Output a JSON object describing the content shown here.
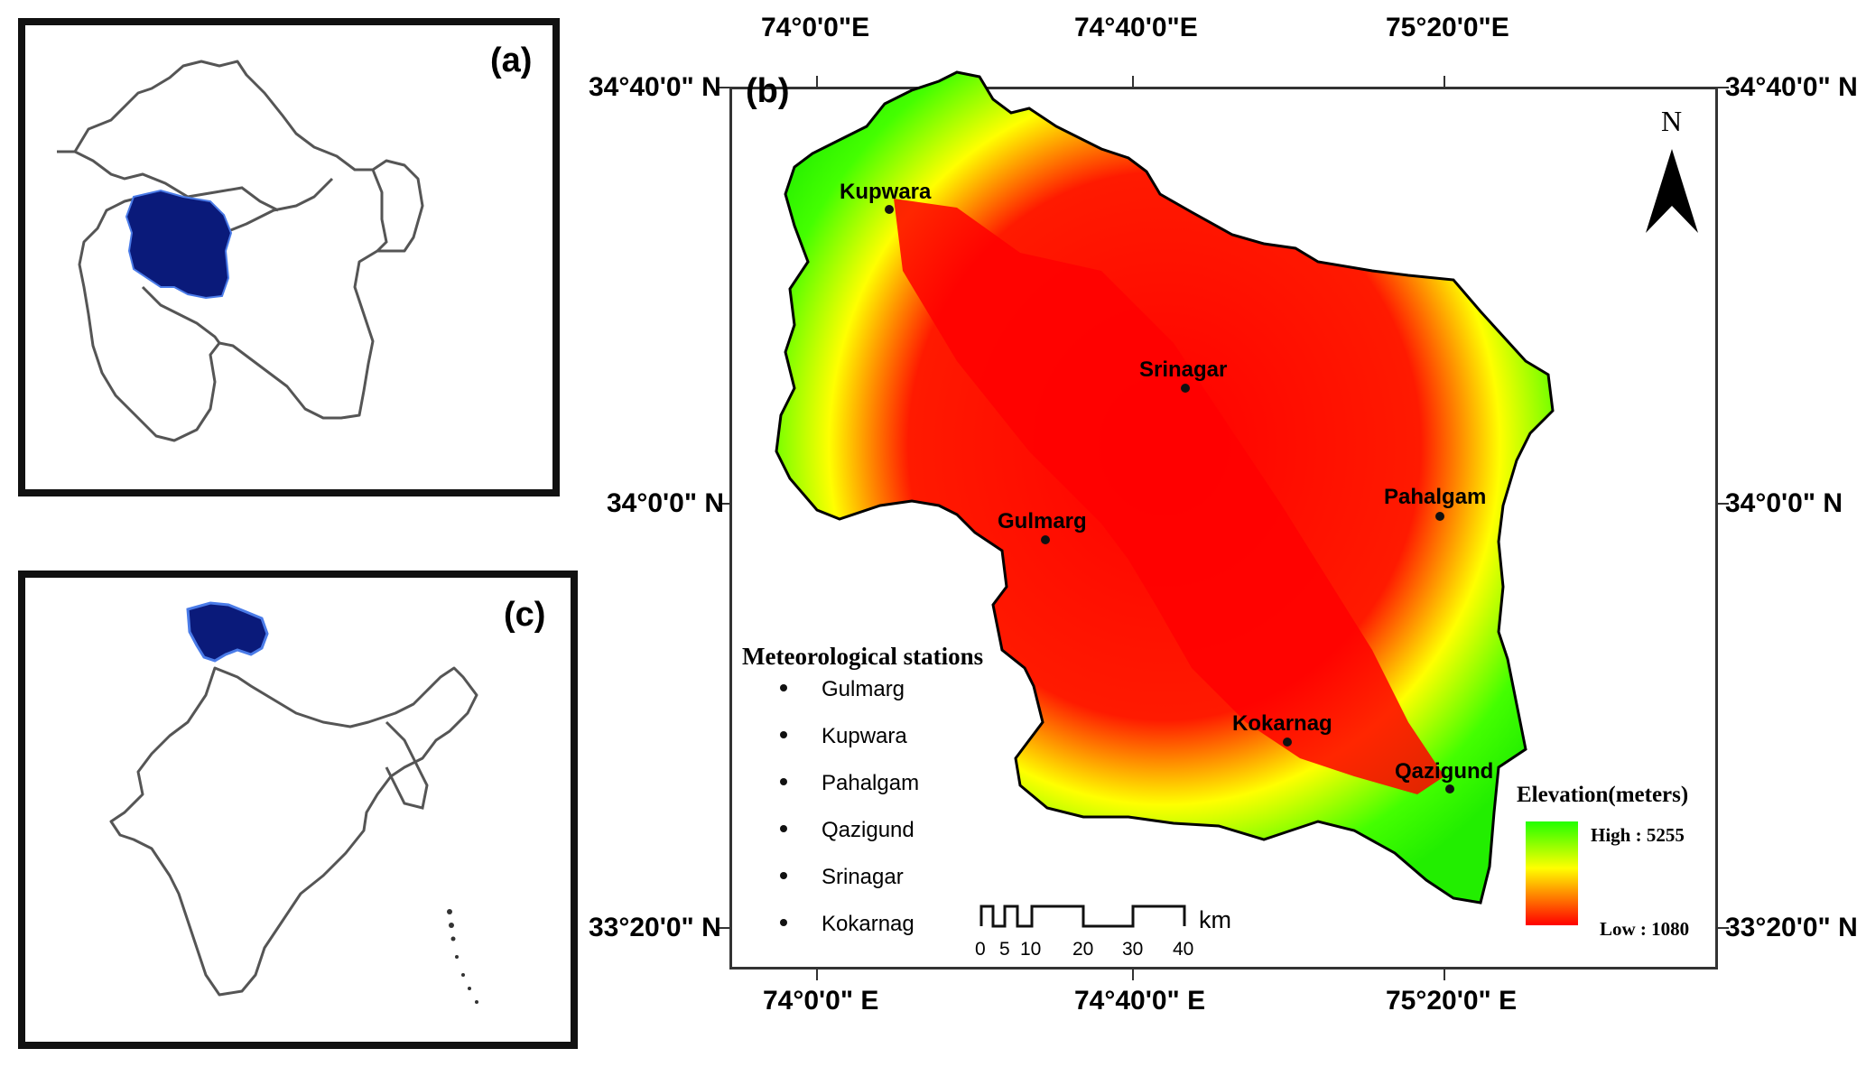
{
  "panels": {
    "a": {
      "label": "(a)"
    },
    "b": {
      "label": "(b)"
    },
    "c": {
      "label": "(c)"
    }
  },
  "coords": {
    "top": [
      "74°0'0\"E",
      "74°40'0\"E",
      "75°20'0\"E"
    ],
    "bottom": [
      "74°0'0\" E",
      "74°40'0\" E",
      "75°20'0\" E"
    ],
    "left": [
      "34°40'0\" N",
      "34°0'0\" N",
      "33°20'0\" N"
    ],
    "right": [
      "34°40'0\" N",
      "34°0'0\" N",
      "33°20'0\" N"
    ]
  },
  "north_arrow": {
    "label": "N"
  },
  "stations_on_map": [
    {
      "name": "Kupwara"
    },
    {
      "name": "Srinagar"
    },
    {
      "name": "Pahalgam"
    },
    {
      "name": "Gulmarg"
    },
    {
      "name": "Kokarnag"
    },
    {
      "name": "Qazigund"
    }
  ],
  "legend_stations": {
    "title": "Meteorological stations",
    "items": [
      "Gulmarg",
      "Kupwara",
      "Pahalgam",
      "Qazigund",
      "Srinagar",
      "Kokarnag"
    ]
  },
  "elevation_legend": {
    "title": "Elevation(meters)",
    "high": "High : 5255",
    "low": "Low : 1080",
    "colors": [
      "#22ff00",
      "#ffff00",
      "#ff0000"
    ]
  },
  "scale_bar": {
    "ticks": [
      "0",
      "5",
      "10",
      "20",
      "30",
      "40"
    ],
    "unit": "km"
  },
  "colors": {
    "region_fill": "#0a1a7a",
    "outline": "#555555"
  }
}
